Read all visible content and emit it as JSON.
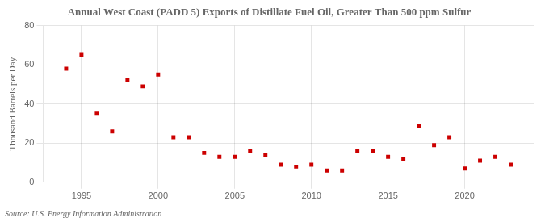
{
  "chart_data": {
    "type": "scatter",
    "title": "Annual West Coast (PADD 5) Exports of Distillate Fuel Oil, Greater Than 500 ppm Sulfur",
    "y_label": "Thousand Barrels per Day",
    "source": "Source: U.S. Energy Information Administration",
    "x": [
      1994,
      1995,
      1996,
      1997,
      1998,
      1999,
      2000,
      2001,
      2002,
      2003,
      2004,
      2005,
      2006,
      2007,
      2008,
      2009,
      2010,
      2011,
      2012,
      2013,
      2014,
      2015,
      2016,
      2017,
      2018,
      2019,
      2020,
      2021,
      2022,
      2023
    ],
    "values": [
      58,
      65,
      35,
      26,
      52,
      49,
      55,
      23,
      23,
      15,
      13,
      13,
      16,
      14,
      9,
      8,
      9,
      6,
      6,
      16,
      16,
      13,
      12,
      29,
      19,
      23,
      7,
      11,
      13,
      9
    ],
    "color": "#cc0000",
    "marker": "square",
    "xlim": [
      1992.5,
      2024.5
    ],
    "xticks": [
      1995,
      2000,
      2005,
      2010,
      2015,
      2020
    ],
    "ylim": [
      0,
      80
    ],
    "yticks": [
      0,
      20,
      40,
      60,
      80
    ],
    "grid": true
  }
}
